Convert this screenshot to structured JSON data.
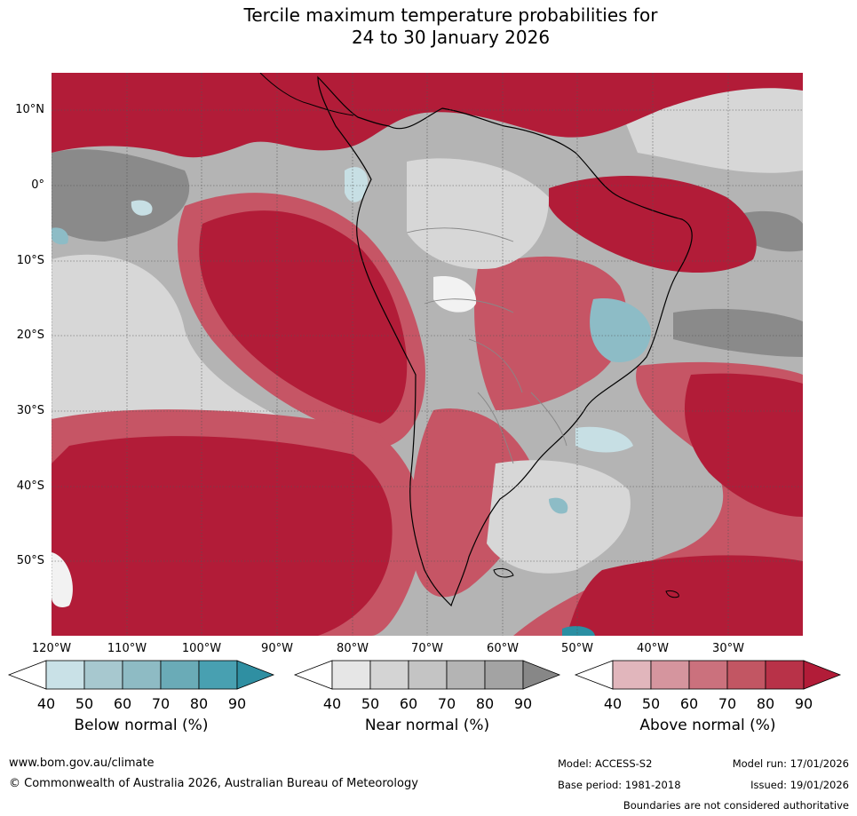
{
  "title": {
    "line1": "Tercile maximum temperature probabilities for",
    "line2": "24 to 30 January 2026"
  },
  "map": {
    "lat_labels": [
      "10°N",
      "0°",
      "10°S",
      "20°S",
      "30°S",
      "40°S",
      "50°S"
    ],
    "lon_labels": [
      "120°W",
      "110°W",
      "100°W",
      "90°W",
      "80°W",
      "70°W",
      "60°W",
      "50°W",
      "40°W",
      "30°W"
    ],
    "colors": {
      "above_strong": "#b21c38",
      "above_mid": "#c65565",
      "above_light": "#dba3ab",
      "near_dark": "#8a8a8a",
      "near_mid": "#b4b4b4",
      "near_light": "#d7d7d7",
      "below_light": "#c7dfe4",
      "below_mid": "#8dbcc6",
      "below_strong": "#2a8fa3",
      "coast": "#000000",
      "border": "#888888",
      "grid": "#555555"
    }
  },
  "colorbars": [
    {
      "label": "Below normal (%)",
      "ticks": [
        "40",
        "50",
        "60",
        "70",
        "80",
        "90"
      ],
      "colors": [
        "#ffffff",
        "#c9e1e7",
        "#a7c8cf",
        "#8ebbc4",
        "#6aabb7",
        "#48a0b1",
        "#2f8fa2"
      ]
    },
    {
      "label": "Near normal (%)",
      "ticks": [
        "40",
        "50",
        "60",
        "70",
        "80",
        "90"
      ],
      "colors": [
        "#ffffff",
        "#e6e6e6",
        "#d4d4d4",
        "#c4c4c4",
        "#b4b4b4",
        "#a3a3a3",
        "#878787"
      ]
    },
    {
      "label": "Above normal (%)",
      "ticks": [
        "40",
        "50",
        "60",
        "70",
        "80",
        "90"
      ],
      "colors": [
        "#ffffff",
        "#e1b6bc",
        "#d5959e",
        "#cb717d",
        "#c25663",
        "#b83248",
        "#b21c38"
      ]
    }
  ],
  "footer": {
    "website": "www.bom.gov.au/climate",
    "copyright": "© Commonwealth of Australia 2026, Australian Bureau of Meteorology",
    "model": "Model: ACCESS-S2",
    "model_run": "Model run: 17/01/2026",
    "base_period": "Base period: 1981-2018",
    "issued": "Issued: 19/01/2026",
    "boundaries": "Boundaries are not considered authoritative"
  }
}
